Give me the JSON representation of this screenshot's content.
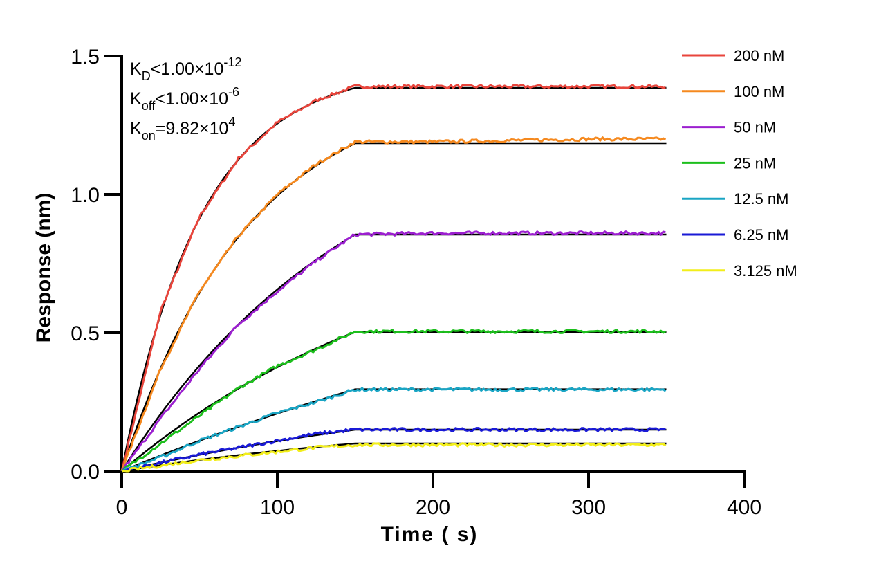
{
  "chart_data": {
    "type": "line",
    "title": "",
    "xlabel": "Time ( s)",
    "ylabel": "Response (nm)",
    "xlim": [
      0,
      400
    ],
    "ylim": [
      0,
      1.5
    ],
    "x_ticks": [
      "0",
      "100",
      "200",
      "300",
      "400"
    ],
    "y_ticks": [
      "0.0",
      "0.5",
      "1.0",
      "1.5"
    ],
    "x_tick_values": [
      0,
      100,
      200,
      300,
      400
    ],
    "y_tick_values": [
      0,
      0.5,
      1.0,
      1.5
    ],
    "grid": false,
    "legend_position": "top-right",
    "association_end": 150,
    "dissociation_end": 350,
    "fit_color": "#000000",
    "series": [
      {
        "name": "200 nM",
        "color": "#e8453c",
        "x": [
          0,
          25,
          50,
          75,
          100,
          125,
          150,
          200,
          250,
          300,
          350
        ],
        "values": [
          0,
          0.58,
          0.92,
          1.13,
          1.26,
          1.34,
          1.39,
          1.39,
          1.39,
          1.39,
          1.39
        ]
      },
      {
        "name": "100 nM",
        "color": "#f5891f",
        "x": [
          0,
          25,
          50,
          75,
          100,
          125,
          150,
          200,
          250,
          300,
          350
        ],
        "values": [
          0,
          0.37,
          0.65,
          0.85,
          1.0,
          1.11,
          1.19,
          1.19,
          1.195,
          1.2,
          1.2
        ]
      },
      {
        "name": "50 nM",
        "color": "#9b1fcf",
        "x": [
          0,
          25,
          50,
          75,
          100,
          125,
          150,
          200,
          250,
          300,
          350
        ],
        "values": [
          0,
          0.19,
          0.37,
          0.53,
          0.65,
          0.76,
          0.855,
          0.86,
          0.86,
          0.86,
          0.86
        ]
      },
      {
        "name": "25 nM",
        "color": "#1dbf1d",
        "x": [
          0,
          25,
          50,
          75,
          100,
          125,
          150,
          200,
          250,
          300,
          350
        ],
        "values": [
          0,
          0.1,
          0.2,
          0.3,
          0.38,
          0.44,
          0.505,
          0.505,
          0.505,
          0.505,
          0.505
        ]
      },
      {
        "name": "12.5 nM",
        "color": "#1aa5c4",
        "x": [
          0,
          25,
          50,
          75,
          100,
          125,
          150,
          200,
          250,
          300,
          350
        ],
        "values": [
          0,
          0.05,
          0.11,
          0.16,
          0.21,
          0.25,
          0.295,
          0.295,
          0.295,
          0.295,
          0.295
        ]
      },
      {
        "name": "6.25 nM",
        "color": "#1a1ad6",
        "x": [
          0,
          25,
          50,
          75,
          100,
          125,
          150,
          200,
          250,
          300,
          350
        ],
        "values": [
          0,
          0.03,
          0.06,
          0.085,
          0.11,
          0.135,
          0.15,
          0.15,
          0.15,
          0.15,
          0.15
        ]
      },
      {
        "name": "3.125 nM",
        "color": "#f2ee1a",
        "x": [
          0,
          25,
          50,
          75,
          100,
          125,
          150,
          200,
          250,
          300,
          350
        ],
        "values": [
          0,
          0.02,
          0.04,
          0.055,
          0.07,
          0.085,
          0.095,
          0.095,
          0.095,
          0.095,
          0.095
        ]
      }
    ],
    "fit_plateaus": [
      1.385,
      1.185,
      0.855,
      0.503,
      0.296,
      0.15,
      0.1
    ],
    "annotations": [
      {
        "main": "K",
        "sub": "D",
        "rest": "<1.00×10",
        "sup": "-12"
      },
      {
        "main": "K",
        "sub": "off",
        "rest": "<1.00×10",
        "sup": "-6"
      },
      {
        "main": "K",
        "sub": "on",
        "rest": "=9.82×10",
        "sup": "4"
      }
    ]
  }
}
